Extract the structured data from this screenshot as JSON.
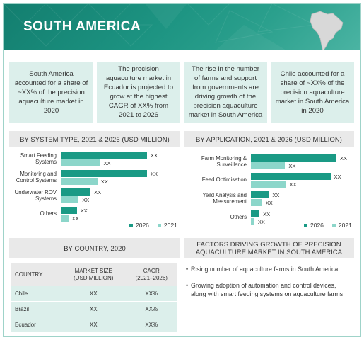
{
  "header": {
    "title": "SOUTH AMERICA"
  },
  "icons": {
    "map": "south-america-map-icon"
  },
  "colors": {
    "banner": "#1d9482",
    "series_2026": "#1a9a85",
    "series_2021": "#8cd6ca",
    "summary_bg": "#dcefeb",
    "header_bg": "#e9e9e9"
  },
  "summaries": [
    "South America accounted for a share of ~XX% of the precision aquaculture market in 2020",
    "The precision aquaculture market in Ecuador is projected to grow at the highest CAGR of XX% from 2021 to 2026",
    "The rise in the number of farms and support from governments are driving growth of the precision aquaculture market in South America",
    "Chile accounted for a share of ~XX% of the precision aquaculture market in South America in 2020"
  ],
  "legend": {
    "a": "2026",
    "b": "2021"
  },
  "chart_data": [
    {
      "type": "bar",
      "title": "BY SYSTEM TYPE, 2021 & 2026 (USD MILLION)",
      "orientation": "horizontal",
      "categories": [
        "Smart Feeding Systems",
        "Monitoring and Control Systems",
        "Underwater ROV Systems",
        "Others"
      ],
      "category_lines": [
        [
          "Smart Feeding",
          "Systems"
        ],
        [
          "Monitoring and",
          "Control Systems"
        ],
        [
          "Underwater ROV",
          "Systems"
        ],
        [
          "Others"
        ]
      ],
      "series": [
        {
          "name": "2026",
          "values": [
            100,
            100,
            34,
            18
          ],
          "labels": [
            "XX",
            "XX",
            "XX",
            "XX"
          ]
        },
        {
          "name": "2021",
          "values": [
            45,
            42,
            20,
            8
          ],
          "labels": [
            "XX",
            "XX",
            "XX",
            "XX"
          ]
        }
      ]
    },
    {
      "type": "bar",
      "title": "BY APPLICATION, 2021 & 2026 (USD MILLION)",
      "orientation": "horizontal",
      "categories": [
        "Farm Monitoring & Surveillance",
        "Feed Optimisation",
        "Yeild Analysis and Measurement",
        "Others"
      ],
      "category_lines": [
        [
          "Farm Monitoring &",
          "Surveillance"
        ],
        [
          "Feed Optimisation"
        ],
        [
          "Yeild Analysis and",
          "Measurement"
        ],
        [
          "Others"
        ]
      ],
      "series": [
        {
          "name": "2026",
          "values": [
            100,
            93,
            21,
            10
          ],
          "labels": [
            "XX",
            "XX",
            "XX",
            "XX"
          ]
        },
        {
          "name": "2021",
          "values": [
            40,
            41,
            13,
            4
          ],
          "labels": [
            "XX",
            "XX",
            "XX",
            "XX"
          ]
        }
      ]
    }
  ],
  "country": {
    "title": "BY COUNTRY, 2020",
    "headers": [
      "COUNTRY",
      "MARKET SIZE (USD MILLION)",
      "CAGR (2021–2026)"
    ],
    "header_lines": [
      [
        "COUNTRY"
      ],
      [
        "MARKET SIZE",
        "(USD MILLION)"
      ],
      [
        "CAGR",
        "(2021–2026)"
      ]
    ],
    "rows": [
      [
        "Chile",
        "XX",
        "XX%"
      ],
      [
        "Brazil",
        "XX",
        "XX%"
      ],
      [
        "Ecuador",
        "XX",
        "XX%"
      ]
    ]
  },
  "factors": {
    "title_lines": [
      "FACTORS DRIVING GROWTH OF PRECISION",
      "AQUACULTURE MARKET IN SOUTH AMERICA"
    ],
    "items": [
      "Rising number of aquaculture farms in South America",
      "Growing adoption of automation and control devices, along with smart feeding systems on aquaculture farms"
    ]
  }
}
